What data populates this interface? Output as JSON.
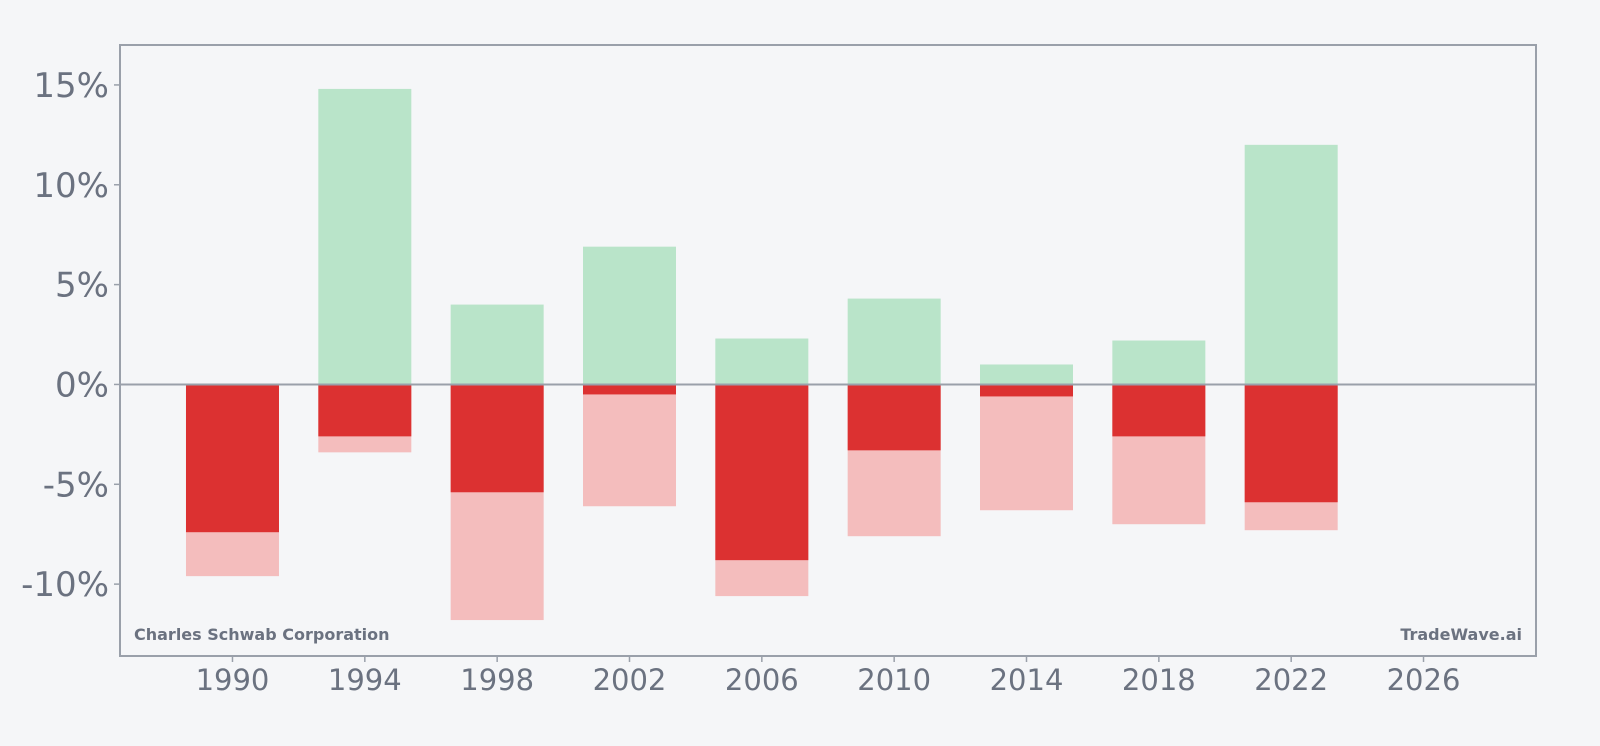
{
  "chart_data": {
    "type": "bar",
    "company_label": "Charles Schwab Corporation",
    "brand_label": "TradeWave.ai",
    "x_ticks": [
      1990,
      1994,
      1998,
      2002,
      2006,
      2010,
      2014,
      2018,
      2022,
      2026
    ],
    "y_ticks": [
      -10,
      -5,
      0,
      5,
      10,
      15
    ],
    "y_tick_labels": [
      "-10%",
      "-5%",
      "0%",
      "5%",
      "10%",
      "15%"
    ],
    "xlim": [
      1986.6,
      2029.4
    ],
    "ylim": [
      -13.6,
      17
    ],
    "grid": false,
    "colors": {
      "positive": "#b9e4c9",
      "negative_dark": "#dc3131",
      "negative_light": "#f4bdbd",
      "axis": "#9aa0aa",
      "background": "#f5f6f8"
    },
    "bars": [
      {
        "x": 1990,
        "positive": 0,
        "negative_dark": -7.4,
        "negative_light": -9.6
      },
      {
        "x": 1994,
        "positive": 14.8,
        "negative_dark": -2.6,
        "negative_light": -3.4
      },
      {
        "x": 1998,
        "positive": 4.0,
        "negative_dark": -5.4,
        "negative_light": -11.8
      },
      {
        "x": 2002,
        "positive": 6.9,
        "negative_dark": -0.5,
        "negative_light": -6.1
      },
      {
        "x": 2006,
        "positive": 2.3,
        "negative_dark": -8.8,
        "negative_light": -10.6
      },
      {
        "x": 2010,
        "positive": 4.3,
        "negative_dark": -3.3,
        "negative_light": -7.6
      },
      {
        "x": 2014,
        "positive": 1.0,
        "negative_dark": -0.6,
        "negative_light": -6.3
      },
      {
        "x": 2018,
        "positive": 2.2,
        "negative_dark": -2.6,
        "negative_light": -7.0
      },
      {
        "x": 2022,
        "positive": 12.0,
        "negative_dark": -5.9,
        "negative_light": -7.3
      }
    ]
  }
}
